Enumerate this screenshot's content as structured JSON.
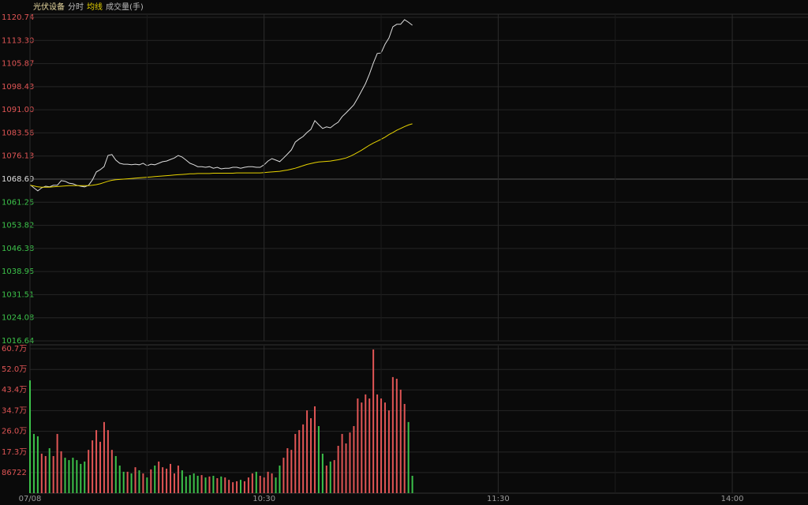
{
  "chart_data": [
    {
      "type": "line",
      "title": "光伏设备",
      "xlim": [
        0,
        199
      ],
      "ylim": [
        1016.64,
        1120.74
      ],
      "yticks": [
        1120.74,
        {
          "value": 1113.3,
          "label": "1113.30"
        },
        1105.87,
        1098.43,
        {
          "value": 1091.0,
          "label": "1091.00"
        },
        1083.56,
        1076.13,
        1068.69,
        1061.25,
        1053.82,
        1046.38,
        1038.95,
        1031.51,
        1024.08,
        1016.64
      ],
      "grid": true,
      "series": [
        {
          "name": "分时",
          "color": "#dcdcdc",
          "values": [
            1066.9,
            1065.9,
            1064.9,
            1065.9,
            1066.4,
            1066.2,
            1066.7,
            1066.7,
            1068.2,
            1068.0,
            1067.4,
            1067.2,
            1066.7,
            1066.4,
            1066.2,
            1066.7,
            1068.4,
            1071.0,
            1071.7,
            1072.7,
            1076.3,
            1076.6,
            1074.8,
            1073.8,
            1073.5,
            1073.5,
            1073.3,
            1073.5,
            1073.3,
            1073.8,
            1073.0,
            1073.5,
            1073.3,
            1073.8,
            1074.3,
            1074.5,
            1075.0,
            1075.5,
            1076.3,
            1075.8,
            1074.8,
            1073.8,
            1073.3,
            1072.7,
            1072.7,
            1072.5,
            1072.7,
            1072.2,
            1072.5,
            1072.0,
            1072.2,
            1072.2,
            1072.5,
            1072.5,
            1072.2,
            1072.5,
            1072.7,
            1072.7,
            1072.5,
            1072.5,
            1073.3,
            1074.5,
            1075.3,
            1074.8,
            1074.3,
            1075.5,
            1076.8,
            1078.1,
            1080.6,
            1081.6,
            1082.4,
            1083.7,
            1084.7,
            1087.5,
            1086.2,
            1085.0,
            1085.5,
            1085.2,
            1086.2,
            1087.0,
            1088.8,
            1090.0,
            1091.3,
            1092.6,
            1094.8,
            1097.1,
            1099.4,
            1102.5,
            1106.0,
            1109.1,
            1109.3,
            1112.1,
            1114.1,
            1117.7,
            1118.5,
            1118.5,
            1120.0,
            1119.2,
            1118.2
          ]
        },
        {
          "name": "均线",
          "color": "#e6d200",
          "values": [
            1066.7,
            1066.5,
            1066.2,
            1066.1,
            1066.1,
            1066.1,
            1066.2,
            1066.3,
            1066.4,
            1066.5,
            1066.6,
            1066.6,
            1066.6,
            1066.6,
            1066.6,
            1066.6,
            1066.7,
            1066.9,
            1067.2,
            1067.6,
            1068.0,
            1068.3,
            1068.5,
            1068.6,
            1068.7,
            1068.8,
            1068.9,
            1069.0,
            1069.1,
            1069.2,
            1069.3,
            1069.4,
            1069.5,
            1069.6,
            1069.7,
            1069.8,
            1069.9,
            1070.0,
            1070.1,
            1070.2,
            1070.3,
            1070.4,
            1070.4,
            1070.5,
            1070.5,
            1070.5,
            1070.5,
            1070.6,
            1070.6,
            1070.6,
            1070.6,
            1070.6,
            1070.6,
            1070.7,
            1070.7,
            1070.7,
            1070.7,
            1070.7,
            1070.7,
            1070.7,
            1070.8,
            1070.9,
            1071.0,
            1071.1,
            1071.2,
            1071.4,
            1071.6,
            1071.9,
            1072.2,
            1072.6,
            1073.0,
            1073.4,
            1073.7,
            1074.0,
            1074.2,
            1074.3,
            1074.4,
            1074.5,
            1074.7,
            1074.9,
            1075.2,
            1075.5,
            1076.0,
            1076.6,
            1077.3,
            1078.0,
            1078.8,
            1079.6,
            1080.3,
            1080.9,
            1081.5,
            1082.2,
            1083.0,
            1083.7,
            1084.4,
            1085.0,
            1085.6,
            1086.1,
            1086.5
          ]
        }
      ]
    },
    {
      "type": "bar",
      "title": "成交量(手)",
      "xlim": [
        0,
        199
      ],
      "xticks": [
        {
          "value": 0,
          "label": "07/08"
        },
        {
          "value": 60,
          "label": "10:30"
        },
        {
          "value": 120,
          "label": "11:30"
        },
        {
          "value": 180,
          "label": "14:00"
        }
      ],
      "ylim": [
        0,
        607000
      ],
      "yticks": [
        {
          "value": 607000,
          "label": "60.7万"
        },
        {
          "value": 520000,
          "label": "52.0万"
        },
        {
          "value": 434000,
          "label": "43.4万"
        },
        {
          "value": 347000,
          "label": "34.7万"
        },
        {
          "value": 260000,
          "label": "26.0万"
        },
        {
          "value": 173000,
          "label": "17.3万"
        },
        86722
      ],
      "grid": true,
      "colors": {
        "up": "#e05555",
        "down": "#3cc24a"
      },
      "values": [
        474000,
        249000,
        239000,
        166000,
        156000,
        189000,
        156000,
        249000,
        176000,
        149000,
        139000,
        149000,
        139000,
        123000,
        133000,
        182000,
        222000,
        265000,
        216000,
        299000,
        265000,
        182000,
        156000,
        116000,
        90000,
        90000,
        83000,
        109000,
        96000,
        83000,
        66000,
        100000,
        116000,
        133000,
        109000,
        103000,
        123000,
        83000,
        116000,
        96000,
        70000,
        76000,
        83000,
        73000,
        76000,
        66000,
        70000,
        73000,
        63000,
        70000,
        66000,
        56000,
        46000,
        50000,
        56000,
        50000,
        66000,
        83000,
        90000,
        73000,
        66000,
        90000,
        83000,
        66000,
        116000,
        149000,
        189000,
        182000,
        249000,
        265000,
        289000,
        348000,
        315000,
        365000,
        282000,
        166000,
        116000,
        133000,
        139000,
        199000,
        249000,
        209000,
        255000,
        282000,
        398000,
        381000,
        415000,
        398000,
        604000,
        415000,
        398000,
        381000,
        348000,
        488000,
        481000,
        435000,
        375000,
        299000,
        73000
      ]
    }
  ]
}
